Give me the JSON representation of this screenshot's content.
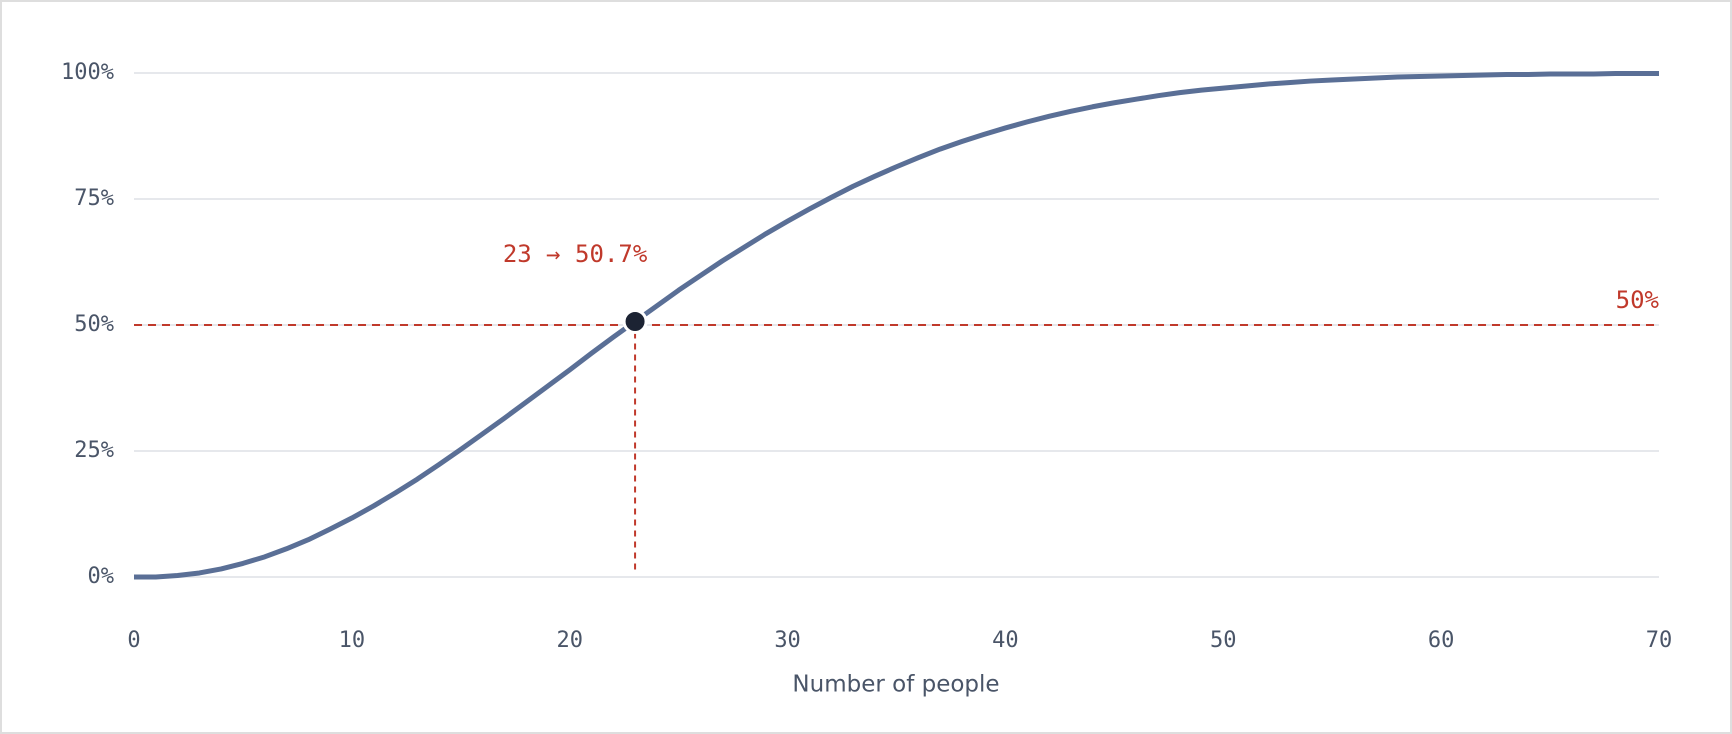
{
  "chart_data": {
    "type": "line",
    "x_label": "Number of people",
    "x": [
      0,
      1,
      2,
      3,
      4,
      5,
      6,
      7,
      8,
      9,
      10,
      11,
      12,
      13,
      14,
      15,
      16,
      17,
      18,
      19,
      20,
      21,
      22,
      23,
      24,
      25,
      26,
      27,
      28,
      29,
      30,
      31,
      32,
      33,
      34,
      35,
      36,
      37,
      38,
      39,
      40,
      41,
      42,
      43,
      44,
      45,
      46,
      47,
      48,
      49,
      50,
      51,
      52,
      53,
      54,
      55,
      56,
      57,
      58,
      59,
      60,
      61,
      62,
      63,
      64,
      65,
      66,
      67,
      68,
      69,
      70
    ],
    "series": [
      {
        "color": "#5a6f96",
        "values": [
          0,
          0,
          0.3,
          0.8,
          1.6,
          2.7,
          4.0,
          5.6,
          7.4,
          9.5,
          11.7,
          14.1,
          16.7,
          19.4,
          22.3,
          25.3,
          28.4,
          31.5,
          34.7,
          37.9,
          41.1,
          44.4,
          47.6,
          50.7,
          53.8,
          56.9,
          59.8,
          62.7,
          65.4,
          68.1,
          70.6,
          73.0,
          75.3,
          77.5,
          79.5,
          81.4,
          83.2,
          84.9,
          86.4,
          87.8,
          89.1,
          90.3,
          91.4,
          92.4,
          93.3,
          94.1,
          94.8,
          95.5,
          96.1,
          96.6,
          97.0,
          97.4,
          97.8,
          98.1,
          98.4,
          98.6,
          98.8,
          99.0,
          99.2,
          99.3,
          99.4,
          99.5,
          99.6,
          99.7,
          99.7,
          99.8,
          99.8,
          99.8,
          99.9,
          99.9,
          99.9
        ]
      }
    ],
    "xlim": [
      0,
      70
    ],
    "xticks": [
      0,
      10,
      20,
      30,
      40,
      50,
      60,
      70
    ],
    "ylim": [
      0,
      100
    ],
    "yticks": [
      {
        "value": 0,
        "label": "0%"
      },
      {
        "value": 25,
        "label": "25%"
      },
      {
        "value": 50,
        "label": "50%"
      },
      {
        "value": 75,
        "label": "75%"
      },
      {
        "value": 100,
        "label": "100%"
      }
    ],
    "grid": true,
    "reference_line": {
      "value": 50,
      "label": "50%",
      "color": "#c0392b"
    },
    "highlight": {
      "x": 23,
      "y": 50.7,
      "label": "23 → 50.7%",
      "color": "#1c2333"
    }
  }
}
